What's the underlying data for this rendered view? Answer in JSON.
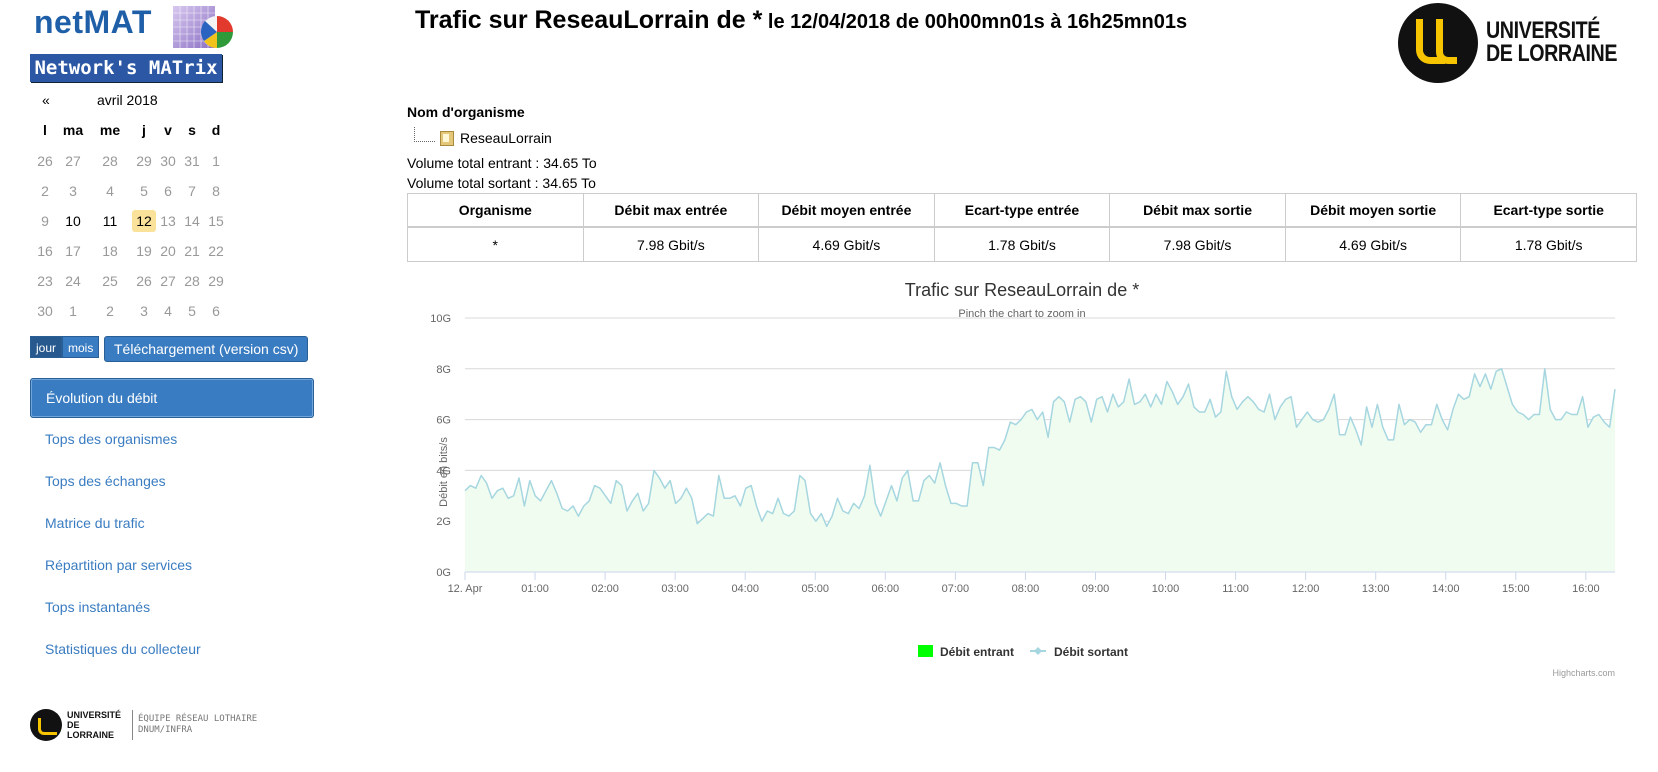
{
  "brand": {
    "name": "netMAT",
    "tagline": "Network's MATrix"
  },
  "calendar": {
    "prev_label": "«",
    "month_label": "avril 2018",
    "weekdays": [
      "l",
      "ma",
      "me",
      "j",
      "v",
      "s",
      "d"
    ],
    "weeks": [
      [
        "26",
        "27",
        "28",
        "29",
        "30",
        "31",
        "1"
      ],
      [
        "2",
        "3",
        "4",
        "5",
        "6",
        "7",
        "8"
      ],
      [
        "9",
        "10",
        "11",
        "12",
        "13",
        "14",
        "15"
      ],
      [
        "16",
        "17",
        "18",
        "19",
        "20",
        "21",
        "22"
      ],
      [
        "23",
        "24",
        "25",
        "26",
        "27",
        "28",
        "29"
      ],
      [
        "30",
        "1",
        "2",
        "3",
        "4",
        "5",
        "6"
      ]
    ],
    "today": "12"
  },
  "mode": {
    "day_label": "jour",
    "month_label": "mois"
  },
  "csv_label": "Téléchargement (version csv)",
  "nav": {
    "items": [
      {
        "label": "Évolution du débit",
        "active": true
      },
      {
        "label": "Tops des organismes",
        "active": false
      },
      {
        "label": "Tops des échanges",
        "active": false
      },
      {
        "label": "Matrice du trafic",
        "active": false
      },
      {
        "label": "Répartition par services",
        "active": false
      },
      {
        "label": "Tops instantanés",
        "active": false
      },
      {
        "label": "Statistiques du collecteur",
        "active": false
      }
    ]
  },
  "header": {
    "title_main": "Trafic sur ReseauLorrain de *",
    "title_sub": " le 12/04/2018 de 00h00mn01s à 16h25mn01s",
    "logo_line1": "UNIVERSITÉ",
    "logo_line2": "DE LORRAINE"
  },
  "organisation": {
    "label": "Nom d'organisme",
    "tree_item": "ReseauLorrain",
    "volume_in": "Volume total entrant : 34.65 To",
    "volume_out": "Volume total sortant : 34.65 To"
  },
  "stats_table": {
    "headers": [
      "Organisme",
      "Débit max entrée",
      "Débit moyen entrée",
      "Ecart-type entrée",
      "Débit max sortie",
      "Débit moyen sortie",
      "Ecart-type sortie"
    ],
    "rows": [
      [
        "*",
        "7.98 Gbit/s",
        "4.69 Gbit/s",
        "1.78 Gbit/s",
        "7.98 Gbit/s",
        "4.69 Gbit/s",
        "1.78 Gbit/s"
      ]
    ]
  },
  "footer": {
    "logo_line1": "UNIVERSITÉ",
    "logo_line2": "DE LORRAINE",
    "team_line1": "ÉQUIPE RÉSEAU LOTHAIRE",
    "team_line2": "DNUM/INFRA"
  },
  "chart_data": {
    "type": "area",
    "title": "Trafic sur ReseauLorrain de *",
    "subtitle": "Pinch the chart to zoom in",
    "ylabel": "Débit en bits/s",
    "credits": "Highcharts.com",
    "y_ticks": [
      "0G",
      "2G",
      "4G",
      "6G",
      "8G",
      "10G"
    ],
    "ylim": [
      0,
      10
    ],
    "x_range_hours": [
      0,
      16.416
    ],
    "x_ticks": [
      {
        "h": 0,
        "label": "12. Apr"
      },
      {
        "h": 1,
        "label": "01:00"
      },
      {
        "h": 2,
        "label": "02:00"
      },
      {
        "h": 3,
        "label": "03:00"
      },
      {
        "h": 4,
        "label": "04:00"
      },
      {
        "h": 5,
        "label": "05:00"
      },
      {
        "h": 6,
        "label": "06:00"
      },
      {
        "h": 7,
        "label": "07:00"
      },
      {
        "h": 8,
        "label": "08:00"
      },
      {
        "h": 9,
        "label": "09:00"
      },
      {
        "h": 10,
        "label": "10:00"
      },
      {
        "h": 11,
        "label": "11:00"
      },
      {
        "h": 12,
        "label": "12:00"
      },
      {
        "h": 13,
        "label": "13:00"
      },
      {
        "h": 14,
        "label": "14:00"
      },
      {
        "h": 15,
        "label": "15:00"
      },
      {
        "h": 16,
        "label": "16:00"
      }
    ],
    "grid": true,
    "legend_position": "bottom-center",
    "series": [
      {
        "name": "Débit entrant",
        "color": "#00ff00",
        "fill": "#f0fcf0"
      },
      {
        "name": "Débit sortant",
        "color": "#a6d6e0"
      }
    ],
    "values": [
      3.2,
      3.4,
      3.3,
      3.8,
      3.5,
      2.9,
      3.2,
      3.3,
      2.9,
      3.0,
      3.7,
      2.6,
      3.6,
      3.0,
      2.8,
      3.2,
      3.6,
      3.1,
      2.5,
      2.4,
      2.6,
      2.2,
      2.6,
      2.8,
      3.4,
      3.3,
      3.0,
      2.7,
      3.6,
      3.4,
      2.4,
      2.8,
      3.1,
      2.4,
      2.7,
      4.0,
      3.7,
      3.3,
      3.6,
      2.7,
      2.9,
      3.3,
      2.9,
      1.9,
      2.1,
      2.3,
      2.2,
      3.8,
      2.9,
      2.9,
      3.0,
      2.6,
      3.3,
      3.4,
      2.6,
      2.0,
      2.4,
      2.3,
      2.9,
      2.3,
      2.2,
      2.4,
      3.8,
      3.6,
      2.3,
      2.0,
      2.3,
      1.8,
      2.2,
      2.9,
      2.4,
      2.3,
      2.7,
      2.5,
      3.0,
      4.2,
      2.7,
      2.2,
      2.8,
      3.4,
      2.8,
      3.7,
      4.0,
      2.8,
      2.8,
      3.6,
      3.8,
      3.5,
      4.3,
      3.4,
      2.7,
      2.7,
      2.6,
      2.6,
      4.3,
      4.3,
      3.4,
      4.9,
      4.9,
      4.8,
      5.2,
      5.9,
      5.8,
      6.0,
      6.3,
      6.4,
      6.0,
      6.3,
      5.3,
      6.7,
      6.9,
      6.7,
      5.9,
      6.8,
      6.9,
      6.7,
      5.9,
      6.8,
      6.9,
      6.3,
      7.0,
      6.5,
      6.7,
      7.6,
      6.6,
      6.7,
      7.0,
      6.5,
      7.0,
      6.6,
      7.5,
      7.1,
      6.6,
      6.9,
      7.4,
      6.5,
      6.3,
      6.3,
      6.8,
      6.1,
      6.3,
      7.9,
      6.9,
      6.4,
      6.7,
      6.9,
      6.7,
      6.4,
      6.3,
      7.0,
      6.0,
      6.5,
      6.8,
      6.9,
      5.7,
      6.0,
      6.3,
      6.0,
      5.9,
      6.0,
      6.4,
      7.0,
      5.4,
      5.4,
      6.1,
      5.6,
      5.0,
      6.5,
      5.7,
      6.6,
      5.7,
      5.2,
      5.2,
      6.6,
      5.8,
      6.0,
      5.9,
      5.5,
      5.8,
      5.8,
      6.6,
      6.0,
      5.6,
      6.4,
      7.0,
      6.8,
      6.9,
      7.8,
      7.3,
      7.8,
      7.2,
      7.9,
      8.0,
      7.3,
      6.6,
      6.3,
      6.2,
      6.0,
      6.2,
      6.2,
      8.0,
      6.4,
      6.0,
      6.0,
      6.3,
      6.2,
      6.2,
      6.9,
      5.7,
      6.1,
      6.2,
      5.9,
      5.7,
      7.2
    ]
  }
}
